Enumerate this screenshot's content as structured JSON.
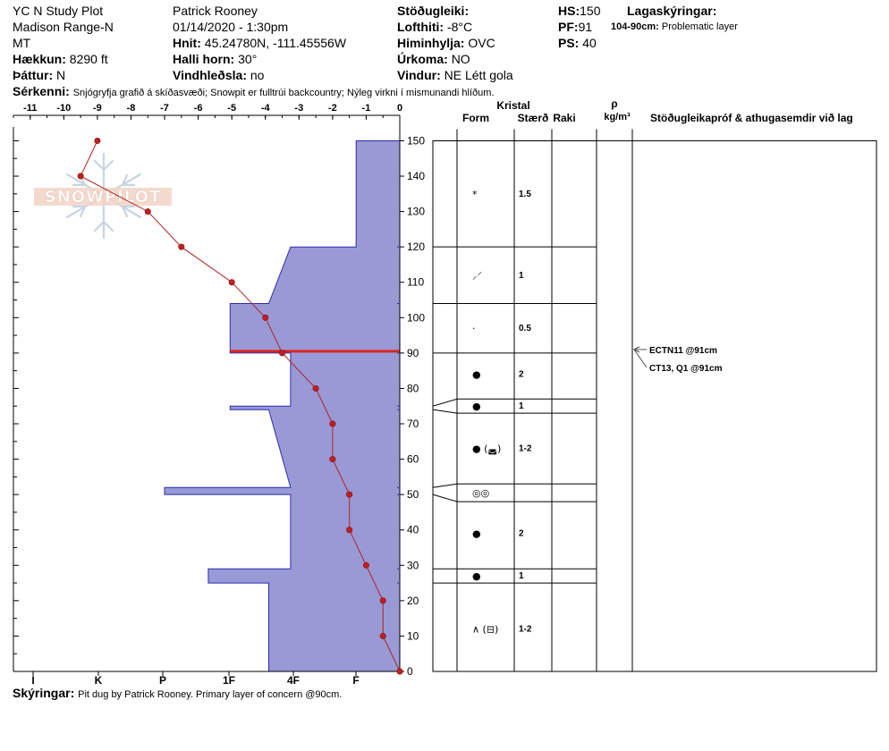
{
  "header": {
    "col1": [
      "YC N Study Plot",
      "Madison Range-N",
      "MT"
    ],
    "elevation_label": "Hækkun:",
    "elevation_value": "8290 ft",
    "aspect_label": "Þáttur:",
    "aspect_value": "N",
    "observer": "Patrick Rooney",
    "datetime": "01/14/2020 - 1:30pm",
    "coords_label": "Hnit:",
    "coords_value": "45.24780N, -111.45556W",
    "slope_label": "Halli horn:",
    "slope_value": "30°",
    "wind_loading_label": "Vindhleðsla:",
    "wind_loading_value": "no",
    "stability_label": "Stöðugleiki:",
    "air_temp_label": "Lofthiti:",
    "air_temp_value": "-8°C",
    "sky_label": "Himinhylja:",
    "sky_value": "OVC",
    "precip_label": "Úrkoma:",
    "precip_value": "NO",
    "wind_label": "Vindur:",
    "wind_value": "NE Létt gola",
    "hs_label": "HS:",
    "hs_value": "150",
    "pf_label": "PF:",
    "pf_value": "91",
    "ps_label": "PS:",
    "ps_value": "40",
    "layer_notes_label": "Lagaskýringar:",
    "layer_note_key": "104-90cm:",
    "layer_note_value": "Problematic layer",
    "remarks_label": "Sérkenni:",
    "remarks_value": "Snjógryfja grafið á skíðasvæði; Snowpit er fulltrúi backcountry; Nýleg virkni í mismunandi hlíðum.",
    "footer_label": "Skýringar:",
    "footer_value": "Pit dug by Patrick Rooney. Primary layer of concern @90cm.",
    "watermark": "SNOWPILOT"
  },
  "table_headers": {
    "crystal": "Kristal",
    "form": "Form",
    "size": "Stærð",
    "moisture": "Raki",
    "rho": "ρ",
    "density_unit": "kg/m³",
    "tests": "Stöðugleikapróf & athugasemdir við lag"
  },
  "chart_data": {
    "type": "line",
    "temp_axis": {
      "ticks": [
        -11,
        -10,
        -9,
        -8,
        -7,
        -6,
        -5,
        -4,
        -3,
        -2,
        -1,
        0
      ],
      "range": [
        -11.5,
        0
      ]
    },
    "hardness_axis": {
      "labels": [
        "I",
        "K",
        "P",
        "1F",
        "4F",
        "F"
      ]
    },
    "height_axis": {
      "ticks": [
        0,
        10,
        20,
        30,
        40,
        50,
        60,
        70,
        80,
        90,
        100,
        110,
        120,
        130,
        140,
        150
      ],
      "range": [
        0,
        150
      ]
    },
    "temperature_profile": [
      {
        "h": 0,
        "t": 0
      },
      {
        "h": 10,
        "t": -0.5
      },
      {
        "h": 20,
        "t": -0.5
      },
      {
        "h": 30,
        "t": -1
      },
      {
        "h": 40,
        "t": -1.5
      },
      {
        "h": 50,
        "t": -1.5
      },
      {
        "h": 60,
        "t": -2
      },
      {
        "h": 70,
        "t": -2
      },
      {
        "h": 80,
        "t": -2.5
      },
      {
        "h": 90,
        "t": -3.5
      },
      {
        "h": 100,
        "t": -4
      },
      {
        "h": 110,
        "t": -5
      },
      {
        "h": 120,
        "t": -6.5
      },
      {
        "h": 130,
        "t": -7.5
      },
      {
        "h": 140,
        "t": -9.5
      },
      {
        "h": 150,
        "t": -9
      }
    ],
    "hardness_profile": [
      {
        "h": 0,
        "t": -3.9
      },
      {
        "h": 25,
        "t": -3.9
      },
      {
        "h": 25,
        "t": -5.7
      },
      {
        "h": 29,
        "t": -5.7
      },
      {
        "h": 29,
        "t": -3.25
      },
      {
        "h": 50,
        "t": -3.25
      },
      {
        "h": 50,
        "t": -7.0
      },
      {
        "h": 52,
        "t": -7.0
      },
      {
        "h": 52,
        "t": -3.25
      },
      {
        "h": 74,
        "t": -3.9
      },
      {
        "h": 74,
        "t": -5.05
      },
      {
        "h": 75,
        "t": -5.05
      },
      {
        "h": 75,
        "t": -3.25
      },
      {
        "h": 90,
        "t": -3.25
      },
      {
        "h": 90,
        "t": -5.05
      },
      {
        "h": 104,
        "t": -5.05
      },
      {
        "h": 104,
        "t": -3.9
      },
      {
        "h": 120,
        "t": -3.25
      },
      {
        "h": 120,
        "t": -1.3
      },
      {
        "h": 150,
        "t": -1.3
      },
      {
        "h": 150,
        "t": 0
      }
    ],
    "highlight_layer_h": 90.5,
    "layer_boundaries": [
      0,
      25,
      29,
      48,
      53,
      73,
      77,
      90,
      104,
      120,
      150
    ],
    "layers": [
      {
        "mid": 135,
        "form": "*",
        "size": "1.5",
        "moisture": ""
      },
      {
        "mid": 112,
        "form": "⸝⸍",
        "size": "1",
        "moisture": ""
      },
      {
        "mid": 97,
        "form": "·",
        "size": "0.5",
        "moisture": ""
      },
      {
        "mid": 84,
        "form": "●",
        "size": "2",
        "moisture": ""
      },
      {
        "mid": 75,
        "form": "●",
        "size": "1",
        "moisture": ""
      },
      {
        "mid": 63,
        "form": "● (◛)",
        "size": "1-2",
        "moisture": ""
      },
      {
        "mid": 50.5,
        "form": "◎◎",
        "size": "",
        "moisture": ""
      },
      {
        "mid": 39,
        "form": "●",
        "size": "2",
        "moisture": ""
      },
      {
        "mid": 27,
        "form": "●",
        "size": "1",
        "moisture": ""
      },
      {
        "mid": 12,
        "form": "∧ (⊟)",
        "size": "1-2",
        "moisture": ""
      }
    ],
    "tests": [
      {
        "h": 91,
        "text": "ECTN11 @91cm",
        "y_offset": 0
      },
      {
        "h": 91,
        "text": "CT13, Q1 @91cm",
        "y_offset": 20
      }
    ]
  }
}
